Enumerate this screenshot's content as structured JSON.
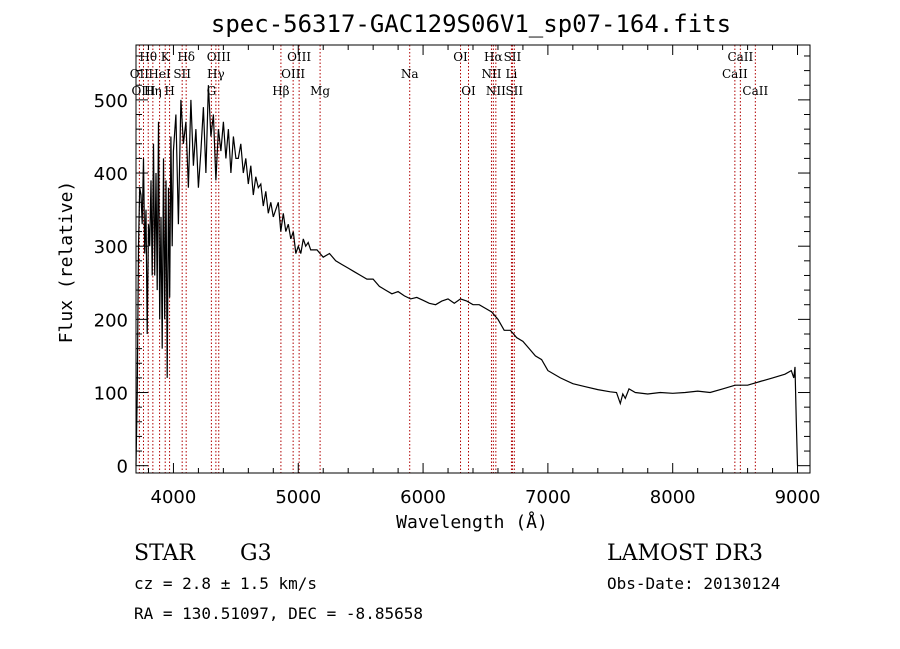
{
  "chart_data": {
    "type": "line",
    "title": "spec-56317-GAC129S06V1_sp07-164.fits",
    "xlabel": "Wavelength (Å)",
    "ylabel": "Flux (relative)",
    "xlim": [
      3700,
      9100
    ],
    "ylim": [
      -10,
      575
    ],
    "xticks": [
      4000,
      5000,
      6000,
      7000,
      8000,
      9000
    ],
    "yticks": [
      0,
      100,
      200,
      300,
      400,
      500
    ],
    "series": [
      {
        "name": "flux",
        "x": [
          3700,
          3710,
          3720,
          3730,
          3740,
          3750,
          3760,
          3770,
          3780,
          3790,
          3800,
          3810,
          3820,
          3830,
          3840,
          3850,
          3860,
          3870,
          3880,
          3890,
          3900,
          3910,
          3920,
          3930,
          3940,
          3950,
          3960,
          3970,
          3980,
          3990,
          4000,
          4020,
          4040,
          4060,
          4080,
          4100,
          4120,
          4140,
          4160,
          4180,
          4200,
          4220,
          4240,
          4260,
          4280,
          4300,
          4320,
          4340,
          4360,
          4380,
          4400,
          4420,
          4440,
          4460,
          4480,
          4500,
          4520,
          4540,
          4560,
          4580,
          4600,
          4620,
          4640,
          4660,
          4680,
          4700,
          4720,
          4740,
          4760,
          4780,
          4800,
          4820,
          4840,
          4860,
          4880,
          4900,
          4920,
          4940,
          4960,
          4980,
          5000,
          5020,
          5040,
          5060,
          5080,
          5100,
          5150,
          5200,
          5250,
          5300,
          5350,
          5400,
          5450,
          5500,
          5550,
          5600,
          5650,
          5700,
          5750,
          5800,
          5850,
          5900,
          5950,
          6000,
          6050,
          6100,
          6150,
          6200,
          6250,
          6300,
          6350,
          6400,
          6450,
          6500,
          6550,
          6600,
          6650,
          6700,
          6750,
          6800,
          6850,
          6900,
          6950,
          7000,
          7100,
          7200,
          7300,
          7400,
          7500,
          7550,
          7580,
          7600,
          7620,
          7650,
          7700,
          7800,
          7900,
          8000,
          8100,
          8200,
          8300,
          8400,
          8500,
          8600,
          8700,
          8800,
          8900,
          8950,
          8970,
          8980,
          8990,
          9000
        ],
        "values": [
          0,
          95,
          300,
          380,
          370,
          330,
          420,
          290,
          350,
          180,
          330,
          300,
          390,
          260,
          440,
          260,
          400,
          240,
          470,
          200,
          340,
          160,
          420,
          200,
          390,
          120,
          380,
          230,
          450,
          300,
          430,
          480,
          330,
          500,
          440,
          470,
          380,
          500,
          410,
          460,
          380,
          430,
          490,
          400,
          520,
          450,
          480,
          390,
          460,
          430,
          470,
          420,
          460,
          400,
          450,
          420,
          420,
          440,
          400,
          420,
          385,
          410,
          370,
          395,
          380,
          385,
          355,
          375,
          345,
          360,
          340,
          350,
          360,
          320,
          345,
          320,
          330,
          310,
          320,
          290,
          300,
          290,
          310,
          300,
          305,
          295,
          295,
          285,
          290,
          280,
          275,
          270,
          265,
          260,
          255,
          255,
          245,
          240,
          235,
          238,
          232,
          228,
          230,
          226,
          222,
          220,
          225,
          228,
          222,
          228,
          225,
          220,
          220,
          215,
          210,
          200,
          185,
          185,
          175,
          170,
          160,
          150,
          145,
          130,
          120,
          112,
          108,
          104,
          101,
          100,
          85,
          98,
          92,
          105,
          100,
          98,
          100,
          99,
          100,
          102,
          100,
          105,
          110,
          110,
          115,
          120,
          125,
          130,
          120,
          135,
          60,
          0
        ]
      }
    ],
    "spectral_lines": [
      {
        "label": "Hθ",
        "wavelength": 3798,
        "row": 0
      },
      {
        "label": "OII",
        "wavelength": 3727,
        "row": 1
      },
      {
        "label": "OIII",
        "wavelength": 3760,
        "row": 2
      },
      {
        "label": "Hη",
        "wavelength": 3835,
        "row": 2
      },
      {
        "label": "HeI",
        "wavelength": 3889,
        "row": 1
      },
      {
        "label": "K",
        "wavelength": 3934,
        "row": 0
      },
      {
        "label": "H",
        "wavelength": 3969,
        "row": 2
      },
      {
        "label": "SII",
        "wavelength": 4070,
        "row": 1
      },
      {
        "label": "Hδ",
        "wavelength": 4102,
        "row": 0
      },
      {
        "label": "OIII",
        "wavelength": 4363,
        "row": 0
      },
      {
        "label": "Hγ",
        "wavelength": 4340,
        "row": 1
      },
      {
        "label": "G",
        "wavelength": 4304,
        "row": 2
      },
      {
        "label": "Hβ",
        "wavelength": 4861,
        "row": 2
      },
      {
        "label": "OIII",
        "wavelength": 4959,
        "row": 1
      },
      {
        "label": "OIII",
        "wavelength": 5007,
        "row": 0
      },
      {
        "label": "Mg",
        "wavelength": 5175,
        "row": 2
      },
      {
        "label": "Na",
        "wavelength": 5893,
        "row": 1
      },
      {
        "label": "OI",
        "wavelength": 6300,
        "row": 0
      },
      {
        "label": "OI",
        "wavelength": 6364,
        "row": 2
      },
      {
        "label": "NII",
        "wavelength": 6548,
        "row": 1
      },
      {
        "label": "Hα",
        "wavelength": 6563,
        "row": 0
      },
      {
        "label": "NII",
        "wavelength": 6583,
        "row": 2
      },
      {
        "label": "Li",
        "wavelength": 6708,
        "row": 1
      },
      {
        "label": "SII",
        "wavelength": 6716,
        "row": 0
      },
      {
        "label": "SII",
        "wavelength": 6731,
        "row": 2
      },
      {
        "label": "CaII",
        "wavelength": 8498,
        "row": 1
      },
      {
        "label": "CaII",
        "wavelength": 8542,
        "row": 0
      },
      {
        "label": "CaII",
        "wavelength": 8662,
        "row": 2
      }
    ]
  },
  "info": {
    "object_class": "STAR",
    "subclass": "G3",
    "survey": "LAMOST DR3",
    "redshift": "cz = 2.8 ± 1.5 km/s",
    "obs_date": "Obs-Date: 20130124",
    "coords": "RA = 130.51097, DEC =  -8.85658"
  },
  "colors": {
    "spectrum": "#000000",
    "line_marker": "#b00000",
    "axis": "#000000"
  }
}
